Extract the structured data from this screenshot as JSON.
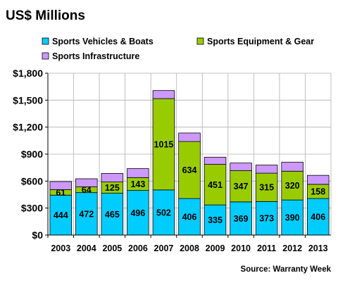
{
  "chart_data": {
    "type": "bar",
    "stacked": true,
    "title": "US$ Millions",
    "source": "Source: Warranty Week",
    "categories": [
      "2003",
      "2004",
      "2005",
      "2006",
      "2007",
      "2008",
      "2009",
      "2010",
      "2011",
      "2012",
      "2013"
    ],
    "series": [
      {
        "name": "Sports Vehicles & Boats",
        "color": "#00CCFF",
        "values": [
          444,
          472,
          465,
          496,
          502,
          406,
          335,
          369,
          373,
          390,
          406
        ]
      },
      {
        "name": "Sports Equipment & Gear",
        "color": "#99CC00",
        "values": [
          61,
          64,
          125,
          143,
          1015,
          634,
          451,
          347,
          315,
          320,
          158
        ]
      },
      {
        "name": "Sports Infrastructure",
        "color": "#CC99FF",
        "values": [
          90,
          90,
          95,
          100,
          90,
          95,
          80,
          85,
          90,
          100,
          100
        ]
      }
    ],
    "data_labels_series": [
      "Sports Vehicles & Boats",
      "Sports Equipment & Gear"
    ],
    "yticks": [
      "$0",
      "$300",
      "$600",
      "$900",
      "$1,200",
      "$1,500",
      "$1,800"
    ],
    "ylim": [
      0,
      1800
    ],
    "grid": true,
    "legend_position": "top"
  }
}
